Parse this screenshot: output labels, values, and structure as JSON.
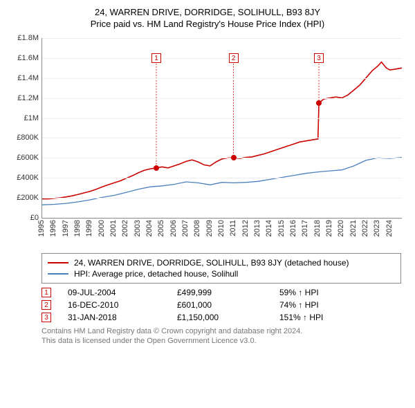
{
  "title_line1": "24, WARREN DRIVE, DORRIDGE, SOLIHULL, B93 8JY",
  "title_line2": "Price paid vs. HM Land Registry's House Price Index (HPI)",
  "chart": {
    "type": "line",
    "background_color": "#ffffff",
    "grid_color": "#eeeeee",
    "axis_color": "#888888",
    "text_color": "#333333",
    "label_fontsize": 11,
    "x_years": [
      1995,
      1996,
      1997,
      1998,
      1999,
      2000,
      2001,
      2002,
      2003,
      2004,
      2005,
      2006,
      2007,
      2008,
      2009,
      2010,
      2011,
      2012,
      2013,
      2014,
      2015,
      2016,
      2017,
      2018,
      2019,
      2020,
      2021,
      2022,
      2023,
      2024
    ],
    "xlim": [
      1995,
      2025
    ],
    "ylim": [
      0,
      1800000
    ],
    "ytick_step": 200000,
    "ytick_labels": [
      "£0",
      "£200K",
      "£400K",
      "£600K",
      "£800K",
      "£1M",
      "£1.2M",
      "£1.4M",
      "£1.6M",
      "£1.8M"
    ],
    "series": [
      {
        "name": "property",
        "label": "24, WARREN DRIVE, DORRIDGE, SOLIHULL, B93 8JY (detached house)",
        "color": "#cc0000",
        "line_width": 1.6,
        "points": [
          [
            1995.0,
            190000
          ],
          [
            1995.5,
            190000
          ],
          [
            1996.0,
            195000
          ],
          [
            1996.5,
            200000
          ],
          [
            1997.0,
            210000
          ],
          [
            1997.5,
            220000
          ],
          [
            1998.0,
            235000
          ],
          [
            1998.5,
            250000
          ],
          [
            1999.0,
            265000
          ],
          [
            1999.5,
            285000
          ],
          [
            2000.0,
            310000
          ],
          [
            2000.5,
            330000
          ],
          [
            2001.0,
            350000
          ],
          [
            2001.5,
            370000
          ],
          [
            2002.0,
            395000
          ],
          [
            2002.5,
            420000
          ],
          [
            2003.0,
            450000
          ],
          [
            2003.5,
            475000
          ],
          [
            2004.0,
            490000
          ],
          [
            2004.52,
            499999
          ],
          [
            2005.0,
            510000
          ],
          [
            2005.5,
            500000
          ],
          [
            2006.0,
            520000
          ],
          [
            2006.5,
            540000
          ],
          [
            2007.0,
            565000
          ],
          [
            2007.5,
            580000
          ],
          [
            2008.0,
            560000
          ],
          [
            2008.5,
            530000
          ],
          [
            2009.0,
            520000
          ],
          [
            2009.5,
            560000
          ],
          [
            2010.0,
            590000
          ],
          [
            2010.5,
            600000
          ],
          [
            2010.96,
            601000
          ],
          [
            2011.5,
            595000
          ],
          [
            2012.0,
            605000
          ],
          [
            2012.5,
            610000
          ],
          [
            2013.0,
            625000
          ],
          [
            2013.5,
            640000
          ],
          [
            2014.0,
            660000
          ],
          [
            2014.5,
            680000
          ],
          [
            2015.0,
            700000
          ],
          [
            2015.5,
            720000
          ],
          [
            2016.0,
            740000
          ],
          [
            2016.5,
            760000
          ],
          [
            2017.0,
            770000
          ],
          [
            2017.5,
            780000
          ],
          [
            2018.0,
            790000
          ],
          [
            2018.08,
            1150000
          ],
          [
            2018.5,
            1190000
          ],
          [
            2019.0,
            1200000
          ],
          [
            2019.5,
            1210000
          ],
          [
            2020.0,
            1200000
          ],
          [
            2020.5,
            1230000
          ],
          [
            2021.0,
            1280000
          ],
          [
            2021.5,
            1330000
          ],
          [
            2022.0,
            1400000
          ],
          [
            2022.5,
            1470000
          ],
          [
            2023.0,
            1520000
          ],
          [
            2023.3,
            1560000
          ],
          [
            2023.7,
            1500000
          ],
          [
            2024.0,
            1480000
          ],
          [
            2024.5,
            1490000
          ],
          [
            2025.0,
            1500000
          ]
        ]
      },
      {
        "name": "hpi",
        "label": "HPI: Average price, detached house, Solihull",
        "color": "#4a7fbf",
        "line_width": 1.3,
        "points": [
          [
            1995.0,
            130000
          ],
          [
            1996.0,
            135000
          ],
          [
            1997.0,
            145000
          ],
          [
            1998.0,
            160000
          ],
          [
            1999.0,
            180000
          ],
          [
            2000.0,
            205000
          ],
          [
            2001.0,
            225000
          ],
          [
            2002.0,
            255000
          ],
          [
            2003.0,
            285000
          ],
          [
            2004.0,
            310000
          ],
          [
            2005.0,
            320000
          ],
          [
            2006.0,
            335000
          ],
          [
            2007.0,
            360000
          ],
          [
            2008.0,
            350000
          ],
          [
            2009.0,
            330000
          ],
          [
            2010.0,
            355000
          ],
          [
            2011.0,
            350000
          ],
          [
            2012.0,
            355000
          ],
          [
            2013.0,
            365000
          ],
          [
            2014.0,
            385000
          ],
          [
            2015.0,
            405000
          ],
          [
            2016.0,
            425000
          ],
          [
            2017.0,
            445000
          ],
          [
            2018.0,
            460000
          ],
          [
            2019.0,
            470000
          ],
          [
            2020.0,
            480000
          ],
          [
            2021.0,
            520000
          ],
          [
            2022.0,
            575000
          ],
          [
            2023.0,
            600000
          ],
          [
            2024.0,
            595000
          ],
          [
            2025.0,
            605000
          ]
        ]
      }
    ],
    "sale_markers": [
      {
        "n": "1",
        "x": 2004.52,
        "y": 499999,
        "label_y": 1600000
      },
      {
        "n": "2",
        "x": 2010.96,
        "y": 601000,
        "label_y": 1600000
      },
      {
        "n": "3",
        "x": 2018.08,
        "y": 1150000,
        "label_y": 1600000
      }
    ]
  },
  "legend_items": [
    {
      "color": "#cc0000",
      "label": "24, WARREN DRIVE, DORRIDGE, SOLIHULL, B93 8JY (detached house)"
    },
    {
      "color": "#4a7fbf",
      "label": "HPI: Average price, detached house, Solihull"
    }
  ],
  "sales": [
    {
      "n": "1",
      "date": "09-JUL-2004",
      "price": "£499,999",
      "pct": "59% ↑ HPI"
    },
    {
      "n": "2",
      "date": "16-DEC-2010",
      "price": "£601,000",
      "pct": "74% ↑ HPI"
    },
    {
      "n": "3",
      "date": "31-JAN-2018",
      "price": "£1,150,000",
      "pct": "151% ↑ HPI"
    }
  ],
  "footnote_line1": "Contains HM Land Registry data © Crown copyright and database right 2024.",
  "footnote_line2": "This data is licensed under the Open Government Licence v3.0."
}
